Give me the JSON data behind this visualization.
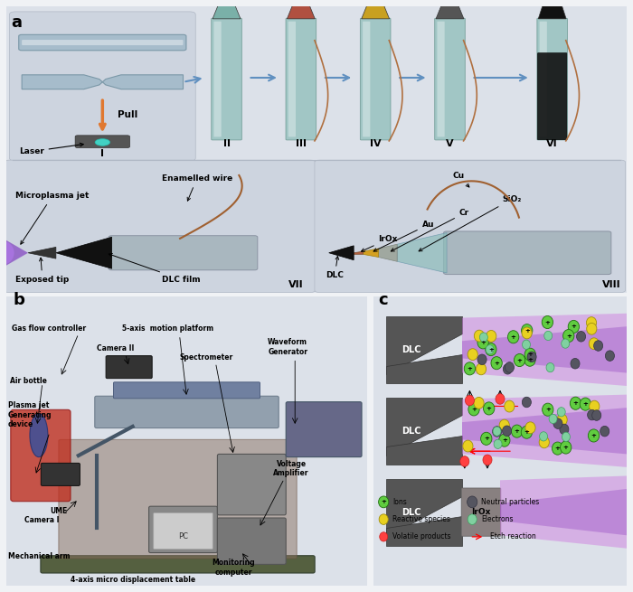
{
  "panel_a_label": "a",
  "panel_b_label": "b",
  "panel_c_label": "c",
  "bg_color": "#e8eaf0",
  "panel_a_bg": "#dde2ea",
  "panel_b_bg": "#dde2ea",
  "step_labels": [
    "I",
    "II",
    "III",
    "IV",
    "V",
    "VI"
  ],
  "vii_label": "VII",
  "viii_label": "VIII",
  "annotations_vii": [
    "Enamelled wire",
    "Microplasma jet",
    "DLC film",
    "Exposed tip"
  ],
  "annotations_viii": [
    "Cu",
    "SiO₂",
    "Cr",
    "Au",
    "IrOx",
    "DLC"
  ],
  "legend_c": [
    "Ions",
    "Neutral particles",
    "Reactive species",
    "Electrons",
    "Volatile products",
    "Etch reaction"
  ],
  "dlc_color": "#555555",
  "plasma_pink": "#e080c0",
  "plasma_purple": "#9060c0",
  "tip_teal": "#7ab0a8",
  "tip_black": "#111111",
  "tip_red": "#b05040",
  "tip_gold": "#c8a020",
  "tip_dark": "#444444",
  "arrow_blue": "#6090c0",
  "tip_colors_top": [
    "#7ab0a8",
    "#b05040",
    "#c8a020",
    "#555555",
    "#111111"
  ],
  "tip_x_centers": [
    3.55,
    4.75,
    5.95,
    7.15,
    8.8
  ],
  "step_labels_ii_vi": [
    "II",
    "III",
    "IV",
    "V",
    "VI"
  ],
  "wire_color": "#b07040",
  "body_color": "#8dbdba",
  "body_edge": "#609088",
  "laser_color": "#40e0d0",
  "rod_color": "#a0b8c8",
  "rod_edge": "#7090a0",
  "silver_color": "#a0b0b8",
  "silver_edge": "#808898",
  "dlc_front": "#111111",
  "plasma_purple2": "#8040c0",
  "plasma_halo": "#c080ff",
  "copper_wire": "#a06030",
  "sio2_color": "#8dbdba",
  "cr_color": "#a0a8a0",
  "au_color": "#d4a020",
  "irox_color": "#b06040"
}
